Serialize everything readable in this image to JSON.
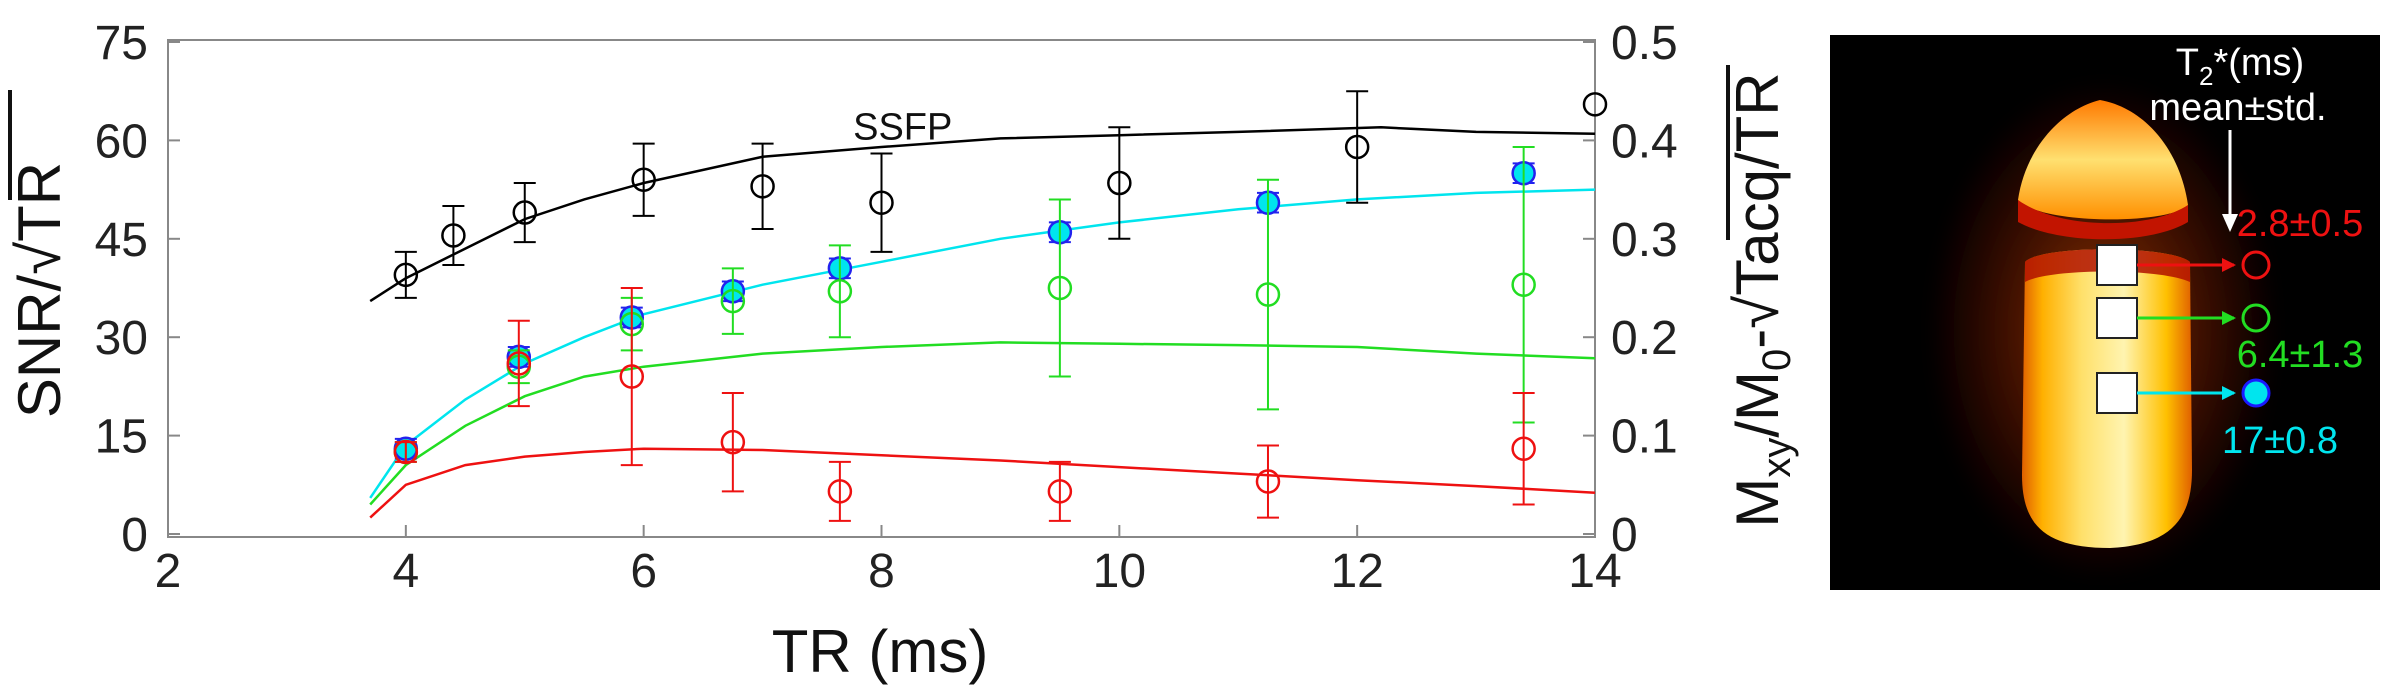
{
  "chart_data": [
    {
      "type": "scatter",
      "xlabel": "TR (ms)",
      "ylabel": {
        "prefix": "SNR/",
        "root": "TR"
      },
      "ylabel_right": {
        "sub": "xy",
        "mid": "/M",
        "subzero": "0",
        "dash": "-",
        "root": "Tacq",
        "suffix": "/TR"
      },
      "xlim": [
        2,
        14
      ],
      "ylim": [
        0,
        75
      ],
      "ylim_right": [
        0,
        0.5
      ],
      "xticks": [
        "2",
        "4",
        "6",
        "8",
        "10",
        "12",
        "14"
      ],
      "yticks": [
        "0",
        "15",
        "30",
        "45",
        "60",
        "75"
      ],
      "yticks_right": [
        "0",
        "0.1",
        "0.2",
        "0.3",
        "0.4",
        "0.5"
      ],
      "grid": false,
      "annotations": [
        {
          "text": "SSFP",
          "x": 8.35,
          "y": 62
        }
      ],
      "series": [
        {
          "name": "SSFP",
          "color": "#000000",
          "marker": "open-circle",
          "curve": {
            "x": [
              3.7,
              4.0,
              4.5,
              5.0,
              5.5,
              6.0,
              7.0,
              8.0,
              9.0,
              10.0,
              11.0,
              12.2,
              13.0,
              14.0
            ],
            "y": [
              35.5,
              39,
              43.5,
              48,
              51,
              53.5,
              57.5,
              59,
              60.3,
              60.8,
              61.3,
              62,
              61.3,
              61
            ]
          },
          "points": {
            "x": [
              4.0,
              4.4,
              5.0,
              6.0,
              7.0,
              8.0,
              10.0,
              12.0,
              14.0
            ],
            "y": [
              39.5,
              45.5,
              49,
              54,
              53,
              50.5,
              53.5,
              59,
              65.5
            ],
            "err": [
              3.5,
              4.5,
              4.5,
              5.5,
              6.5,
              7.5,
              8.5,
              8.5,
              null
            ]
          }
        },
        {
          "name": "17±0.8",
          "color": "#00e5ee",
          "marker": "filled-circle",
          "curve": {
            "x": [
              3.7,
              4.0,
              4.5,
              5.0,
              5.5,
              6.0,
              7.0,
              8.0,
              9.0,
              10.0,
              11.0,
              12.0,
              13.0,
              14.0
            ],
            "y": [
              5.5,
              13.5,
              20.5,
              26,
              30,
              33.5,
              38,
              41.5,
              45,
              47.5,
              49.5,
              51,
              52,
              52.5
            ]
          },
          "points": {
            "x": [
              4.0,
              4.95,
              5.9,
              6.75,
              7.65,
              9.5,
              11.25,
              13.4
            ],
            "y": [
              13,
              27,
              33,
              37,
              40.5,
              46,
              50.5,
              55
            ],
            "err": [
              1.5,
              1.5,
              1.5,
              1.5,
              1.5,
              1.5,
              1.5,
              1.5
            ]
          }
        },
        {
          "name": "6.4±1.3",
          "color": "#22dd22",
          "marker": "open-circle",
          "curve": {
            "x": [
              3.7,
              4.0,
              4.5,
              5.0,
              5.5,
              6.0,
              7.0,
              8.0,
              9.0,
              10.0,
              11.0,
              12.0,
              13.0,
              14.0
            ],
            "y": [
              4.5,
              10.5,
              16.5,
              21,
              24,
              25.5,
              27.5,
              28.5,
              29.2,
              29,
              28.8,
              28.5,
              27.5,
              26.8
            ]
          },
          "points": {
            "x": [
              4.0,
              4.95,
              5.9,
              6.75,
              7.65,
              9.5,
              11.25,
              13.4
            ],
            "y": [
              12.5,
              25.5,
              32,
              35.5,
              37,
              37.5,
              36.5,
              38
            ],
            "err": [
              1.5,
              2.5,
              4.0,
              5.0,
              7.0,
              13.5,
              17.5,
              21.0
            ]
          }
        },
        {
          "name": "2.8±0.5",
          "color": "#ee1111",
          "marker": "open-circle",
          "curve": {
            "x": [
              3.7,
              4.0,
              4.5,
              5.0,
              5.5,
              6.0,
              7.0,
              8.0,
              9.0,
              10.0,
              11.0,
              12.0,
              13.0,
              14.0
            ],
            "y": [
              2.5,
              7.5,
              10.5,
              11.8,
              12.5,
              13,
              12.8,
              12,
              11.2,
              10.2,
              9.2,
              8.2,
              7.3,
              6.3
            ]
          },
          "points": {
            "x": [
              4.0,
              4.95,
              5.9,
              6.75,
              7.65,
              9.5,
              11.25,
              13.4
            ],
            "y": [
              12.5,
              26,
              24,
              14,
              6.5,
              6.5,
              8,
              13
            ],
            "err": [
              1.5,
              6.5,
              13.5,
              7.5,
              4.5,
              4.5,
              5.5,
              8.5
            ]
          }
        }
      ]
    }
  ],
  "inset": {
    "title_base": "T",
    "title_sub": "2",
    "title_rest": "*(ms)",
    "subtitle": "mean±std.",
    "rois": [
      {
        "label": "2.8±0.5",
        "color": "#ee1111",
        "marker": "open-circle"
      },
      {
        "label": "6.4±1.3",
        "color": "#22dd22",
        "marker": "open-circle"
      },
      {
        "label": "17±0.8",
        "color": "#00e5ee",
        "marker": "filled-circle"
      }
    ]
  }
}
